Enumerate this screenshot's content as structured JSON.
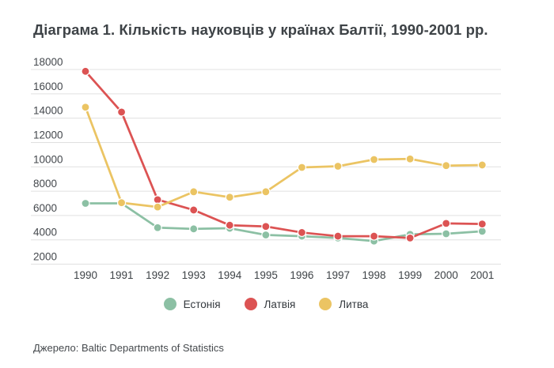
{
  "title": {
    "text": "Діаграма 1. Кількість науковців у країнах Балтії, 1990-2001 рр.",
    "color": "#3E4347"
  },
  "source": {
    "text": "Джерело: Baltic Departments of Statistics",
    "color": "#45494D"
  },
  "legend": {
    "items": [
      {
        "label": "Естонія",
        "color": "#8CC0A4"
      },
      {
        "label": "Латвія",
        "color": "#DC5353"
      },
      {
        "label": "Литва",
        "color": "#EBC463"
      }
    ]
  },
  "chart_data": {
    "type": "line",
    "title": "Діаграма 1. Кількість науковців у країнах Балтії, 1990-2001 рр.",
    "x": [
      1990,
      1991,
      1992,
      1993,
      1994,
      1995,
      1996,
      1997,
      1998,
      1999,
      2000,
      2001
    ],
    "series": [
      {
        "name": "Естонія",
        "color": "#8CC0A4",
        "values": [
          7000,
          7000,
          5000,
          4900,
          4950,
          4400,
          4300,
          4150,
          3900,
          4450,
          4500,
          4700
        ]
      },
      {
        "name": "Латвія",
        "color": "#DC5353",
        "values": [
          17850,
          14500,
          7300,
          6450,
          5200,
          5100,
          4600,
          4300,
          4300,
          4150,
          5350,
          5300
        ]
      },
      {
        "name": "Литва",
        "color": "#EBC463",
        "values": [
          14900,
          7050,
          6700,
          7950,
          7500,
          7950,
          9950,
          10050,
          10600,
          10650,
          10100,
          10150
        ]
      }
    ],
    "ylim": [
      2000,
      18000
    ],
    "yticks": [
      2000,
      4000,
      6000,
      8000,
      10000,
      12000,
      14000,
      16000,
      18000
    ],
    "xlabel": "",
    "ylabel": "",
    "grid": "horizontal",
    "gridline_color": "#E0E0E0",
    "axis_label_color": "#44484D",
    "legend_position": "bottom",
    "point_radius": 5,
    "line_width": 2.75
  }
}
